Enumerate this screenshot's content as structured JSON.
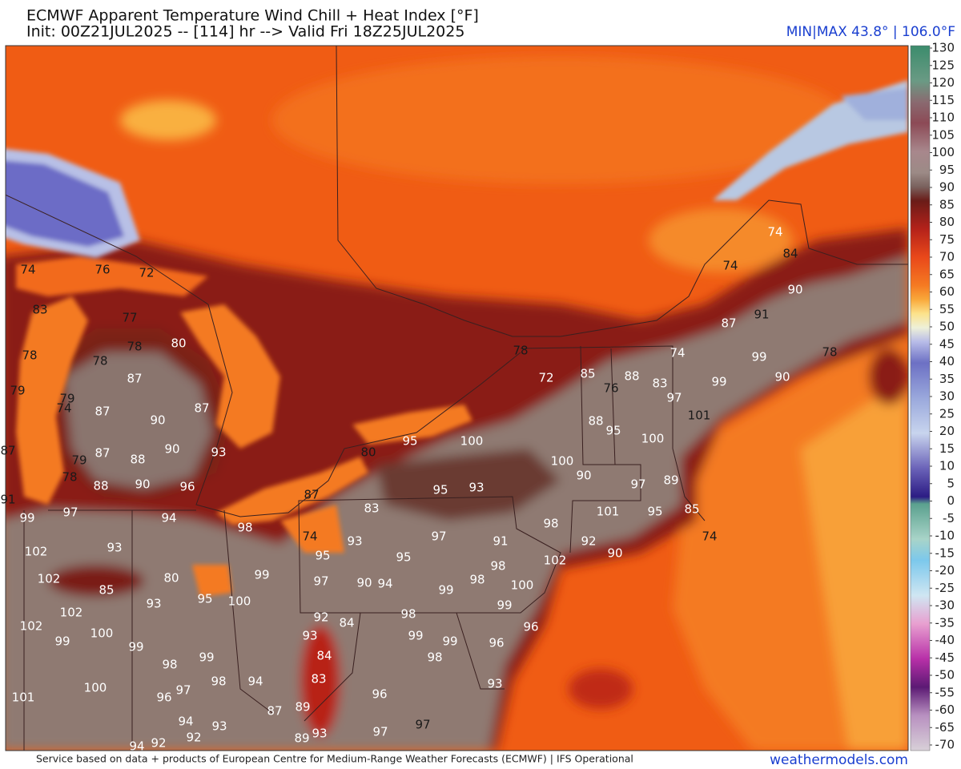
{
  "header": {
    "title": "ECMWF Apparent Temperature Wind Chill + Heat Index [°F]",
    "subtitle": "Init: 00Z21JUL2025 -- [114] hr --> Valid Fri 18Z25JUL2025",
    "min_max": "MIN|MAX 43.8° | 106.0°F"
  },
  "colorbar": {
    "ticks": [
      130,
      125,
      120,
      115,
      110,
      105,
      100,
      95,
      90,
      85,
      80,
      75,
      70,
      65,
      60,
      55,
      50,
      45,
      40,
      35,
      30,
      25,
      20,
      15,
      10,
      5,
      0,
      -5,
      -10,
      -15,
      -20,
      -25,
      -30,
      -35,
      -40,
      -45,
      -50,
      -55,
      -60,
      -65,
      -70
    ]
  },
  "map": {
    "point_labels": [
      74,
      76,
      72,
      83,
      77,
      78,
      80,
      78,
      78,
      87,
      79,
      79,
      74,
      87,
      90,
      87,
      90,
      93,
      87,
      79,
      87,
      88,
      78,
      88,
      90,
      96,
      91,
      99,
      97,
      94,
      98,
      102,
      93,
      102,
      85,
      80,
      99,
      93,
      95,
      100,
      102,
      102,
      99,
      100,
      99,
      98,
      99,
      98,
      94,
      100,
      101,
      96,
      97,
      94,
      93,
      92,
      92,
      94,
      95,
      100,
      80,
      95,
      93,
      87,
      83,
      74,
      93,
      97,
      91,
      95,
      95,
      97,
      90,
      94,
      99,
      98,
      98,
      102,
      100,
      92,
      84,
      93,
      98,
      99,
      99,
      99,
      98,
      96,
      96,
      84,
      83,
      93,
      96,
      87,
      89,
      89,
      93,
      97,
      97,
      78,
      72,
      85,
      88,
      76,
      83,
      74,
      97,
      88,
      95,
      100,
      100,
      90,
      97,
      89,
      101,
      95,
      85,
      98,
      92,
      90,
      74,
      101,
      99,
      90,
      99,
      87,
      91,
      90,
      74,
      84,
      74,
      78
    ]
  },
  "footer": {
    "credit": "Service based on data + products of European Centre for Medium-Range Weather Forecasts (ECMWF) | IFS Operational",
    "brand": "weathermodels.com"
  }
}
